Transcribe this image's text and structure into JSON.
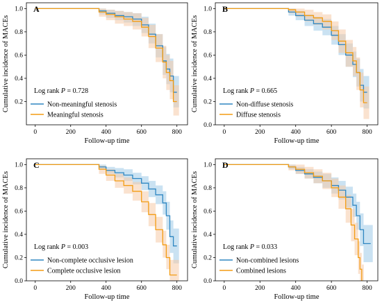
{
  "chart_data": [
    {
      "panel": "A",
      "type": "line",
      "xlabel": "Follow-up time",
      "ylabel": "Cumulative incidence of  MACEs",
      "xlim": [
        -50,
        860
      ],
      "ylim": [
        0.0,
        1.05
      ],
      "xticks": [
        0,
        200,
        400,
        600,
        800
      ],
      "yticks": [
        0.2,
        0.4,
        0.6,
        0.8,
        1.0
      ],
      "stat_prefix": "Log rank ",
      "stat_p": "P",
      "stat_value": " = 0.728",
      "legend_position": "bottom-left",
      "series": [
        {
          "name": "Non-meaningful stenosis",
          "color": "#2E86C1",
          "band_color": "#9FCBE8",
          "x": [
            0,
            340,
            360,
            400,
            450,
            500,
            550,
            600,
            640,
            680,
            720,
            740,
            760,
            780,
            800
          ],
          "y": [
            1.0,
            1.0,
            0.98,
            0.96,
            0.94,
            0.93,
            0.91,
            0.86,
            0.78,
            0.68,
            0.55,
            0.48,
            0.42,
            0.28,
            0.28
          ],
          "lower": [
            1.0,
            1.0,
            0.95,
            0.92,
            0.9,
            0.88,
            0.85,
            0.79,
            0.7,
            0.58,
            0.43,
            0.35,
            0.28,
            0.15,
            0.15
          ],
          "upper": [
            1.0,
            1.0,
            1.0,
            0.99,
            0.98,
            0.97,
            0.96,
            0.93,
            0.87,
            0.78,
            0.67,
            0.61,
            0.57,
            0.42,
            0.42
          ]
        },
        {
          "name": "Meaningful stenosis",
          "color": "#F39C12",
          "band_color": "#F5CBA7",
          "x": [
            0,
            340,
            360,
            400,
            450,
            500,
            550,
            600,
            640,
            680,
            720,
            740,
            760,
            780,
            800
          ],
          "y": [
            1.0,
            1.0,
            0.97,
            0.95,
            0.93,
            0.91,
            0.89,
            0.84,
            0.76,
            0.66,
            0.54,
            0.45,
            0.38,
            0.2,
            0.2
          ],
          "lower": [
            1.0,
            1.0,
            0.93,
            0.9,
            0.87,
            0.85,
            0.82,
            0.76,
            0.66,
            0.54,
            0.4,
            0.3,
            0.22,
            0.08,
            0.08
          ],
          "upper": [
            1.0,
            1.0,
            1.0,
            0.99,
            0.98,
            0.97,
            0.96,
            0.92,
            0.86,
            0.78,
            0.68,
            0.6,
            0.55,
            0.34,
            0.34
          ]
        }
      ]
    },
    {
      "panel": "B",
      "type": "line",
      "xlabel": "Follow-up time",
      "ylabel": "Cumulative incidence of  MACEs",
      "xlim": [
        -50,
        860
      ],
      "ylim": [
        0.0,
        1.05
      ],
      "xticks": [
        0,
        200,
        400,
        600,
        800
      ],
      "yticks": [
        0.0,
        0.2,
        0.4,
        0.6,
        0.8,
        1.0
      ],
      "stat_prefix": "Log rank ",
      "stat_p": "P",
      "stat_value": " = 0.665",
      "legend_position": "bottom-left",
      "series": [
        {
          "name": "Non-diffuse stenosis",
          "color": "#2E86C1",
          "band_color": "#9FCBE8",
          "x": [
            0,
            340,
            360,
            400,
            450,
            500,
            550,
            600,
            640,
            680,
            720,
            740,
            760,
            780,
            800
          ],
          "y": [
            1.0,
            1.0,
            0.97,
            0.94,
            0.9,
            0.87,
            0.84,
            0.77,
            0.69,
            0.6,
            0.52,
            0.45,
            0.34,
            0.28,
            0.28
          ],
          "lower": [
            1.0,
            1.0,
            0.94,
            0.9,
            0.85,
            0.81,
            0.77,
            0.69,
            0.6,
            0.5,
            0.41,
            0.33,
            0.2,
            0.14,
            0.14
          ],
          "upper": [
            1.0,
            1.0,
            1.0,
            0.98,
            0.95,
            0.93,
            0.91,
            0.85,
            0.78,
            0.7,
            0.63,
            0.57,
            0.48,
            0.42,
            0.42
          ]
        },
        {
          "name": "Diffuse stenosis",
          "color": "#F39C12",
          "band_color": "#F5CBA7",
          "x": [
            0,
            340,
            360,
            400,
            450,
            500,
            550,
            600,
            640,
            680,
            720,
            740,
            760,
            780,
            800
          ],
          "y": [
            1.0,
            1.0,
            0.99,
            0.97,
            0.94,
            0.92,
            0.89,
            0.81,
            0.72,
            0.62,
            0.55,
            0.45,
            0.3,
            0.19,
            0.19
          ],
          "lower": [
            1.0,
            1.0,
            0.96,
            0.93,
            0.89,
            0.86,
            0.82,
            0.73,
            0.62,
            0.5,
            0.42,
            0.3,
            0.15,
            0.05,
            0.05
          ],
          "upper": [
            1.0,
            1.0,
            1.0,
            1.0,
            0.99,
            0.97,
            0.95,
            0.89,
            0.82,
            0.73,
            0.67,
            0.58,
            0.45,
            0.33,
            0.33
          ]
        }
      ]
    },
    {
      "panel": "C",
      "type": "line",
      "xlabel": "Follow-up time",
      "ylabel": "Cumulative incidence of  MACEs",
      "xlim": [
        -50,
        860
      ],
      "ylim": [
        0.0,
        1.05
      ],
      "xticks": [
        0,
        200,
        400,
        600,
        800
      ],
      "yticks": [
        0.0,
        0.2,
        0.4,
        0.6,
        0.8,
        1.0
      ],
      "stat_prefix": "Log rank ",
      "stat_p": "P",
      "stat_value": " = 0.003",
      "legend_position": "bottom-left",
      "series": [
        {
          "name": "Non-complete occlusive lesion",
          "color": "#2E86C1",
          "band_color": "#9FCBE8",
          "x": [
            0,
            340,
            360,
            400,
            450,
            500,
            550,
            600,
            640,
            680,
            720,
            740,
            760,
            780,
            800
          ],
          "y": [
            1.0,
            1.0,
            0.98,
            0.95,
            0.93,
            0.91,
            0.88,
            0.84,
            0.79,
            0.74,
            0.67,
            0.56,
            0.38,
            0.3,
            0.3
          ],
          "lower": [
            1.0,
            1.0,
            0.96,
            0.92,
            0.89,
            0.86,
            0.83,
            0.78,
            0.72,
            0.66,
            0.57,
            0.44,
            0.24,
            0.15,
            0.15
          ],
          "upper": [
            1.0,
            1.0,
            1.0,
            0.98,
            0.97,
            0.96,
            0.93,
            0.9,
            0.86,
            0.82,
            0.77,
            0.68,
            0.52,
            0.45,
            0.45
          ]
        },
        {
          "name": "Complete occlusive lesion",
          "color": "#F39C12",
          "band_color": "#F5CBA7",
          "x": [
            0,
            340,
            360,
            400,
            450,
            500,
            550,
            600,
            640,
            680,
            720,
            740,
            760,
            780,
            800
          ],
          "y": [
            1.0,
            1.0,
            0.96,
            0.91,
            0.86,
            0.82,
            0.77,
            0.68,
            0.57,
            0.44,
            0.31,
            0.2,
            0.05,
            0.05,
            0.05
          ],
          "lower": [
            1.0,
            1.0,
            0.92,
            0.86,
            0.8,
            0.75,
            0.69,
            0.59,
            0.47,
            0.33,
            0.2,
            0.1,
            0.0,
            0.0,
            0.0
          ],
          "upper": [
            1.0,
            1.0,
            0.99,
            0.96,
            0.92,
            0.89,
            0.85,
            0.77,
            0.67,
            0.55,
            0.43,
            0.31,
            0.18,
            0.18,
            0.18
          ]
        }
      ]
    },
    {
      "panel": "D",
      "type": "line",
      "xlabel": "Follow-up time",
      "ylabel": "Cumulative incidence of  MACEs",
      "xlim": [
        -50,
        860
      ],
      "ylim": [
        0.0,
        1.05
      ],
      "xticks": [
        0,
        200,
        400,
        600,
        800
      ],
      "yticks": [
        0.0,
        0.2,
        0.4,
        0.6,
        0.8,
        1.0
      ],
      "stat_prefix": "Log rank ",
      "stat_p": "P",
      "stat_value": " = 0.033",
      "legend_position": "bottom-left",
      "series": [
        {
          "name": "Non-combined lesions",
          "color": "#2E86C1",
          "band_color": "#9FCBE8",
          "x": [
            0,
            340,
            360,
            400,
            450,
            500,
            550,
            600,
            640,
            680,
            720,
            740,
            760,
            780,
            820
          ],
          "y": [
            1.0,
            1.0,
            0.98,
            0.95,
            0.92,
            0.89,
            0.86,
            0.82,
            0.78,
            0.72,
            0.65,
            0.56,
            0.44,
            0.32,
            0.32
          ],
          "lower": [
            1.0,
            1.0,
            0.96,
            0.92,
            0.88,
            0.84,
            0.8,
            0.75,
            0.7,
            0.63,
            0.55,
            0.44,
            0.3,
            0.16,
            0.16
          ],
          "upper": [
            1.0,
            1.0,
            1.0,
            0.98,
            0.96,
            0.94,
            0.92,
            0.89,
            0.86,
            0.81,
            0.75,
            0.68,
            0.58,
            0.48,
            0.48
          ]
        },
        {
          "name": "Combined lesions",
          "color": "#F39C12",
          "band_color": "#F5CBA7",
          "x": [
            0,
            340,
            360,
            400,
            450,
            500,
            550,
            600,
            640,
            680,
            710,
            730,
            750,
            760,
            770
          ],
          "y": [
            1.0,
            1.0,
            0.98,
            0.96,
            0.93,
            0.9,
            0.86,
            0.8,
            0.72,
            0.62,
            0.48,
            0.36,
            0.2,
            0.1,
            0.0
          ],
          "lower": [
            1.0,
            1.0,
            0.95,
            0.92,
            0.88,
            0.84,
            0.79,
            0.72,
            0.62,
            0.5,
            0.34,
            0.22,
            0.06,
            0.0,
            0.0
          ],
          "upper": [
            1.0,
            1.0,
            1.0,
            1.0,
            0.98,
            0.96,
            0.93,
            0.88,
            0.82,
            0.74,
            0.62,
            0.5,
            0.34,
            0.24,
            0.14
          ]
        }
      ]
    }
  ]
}
